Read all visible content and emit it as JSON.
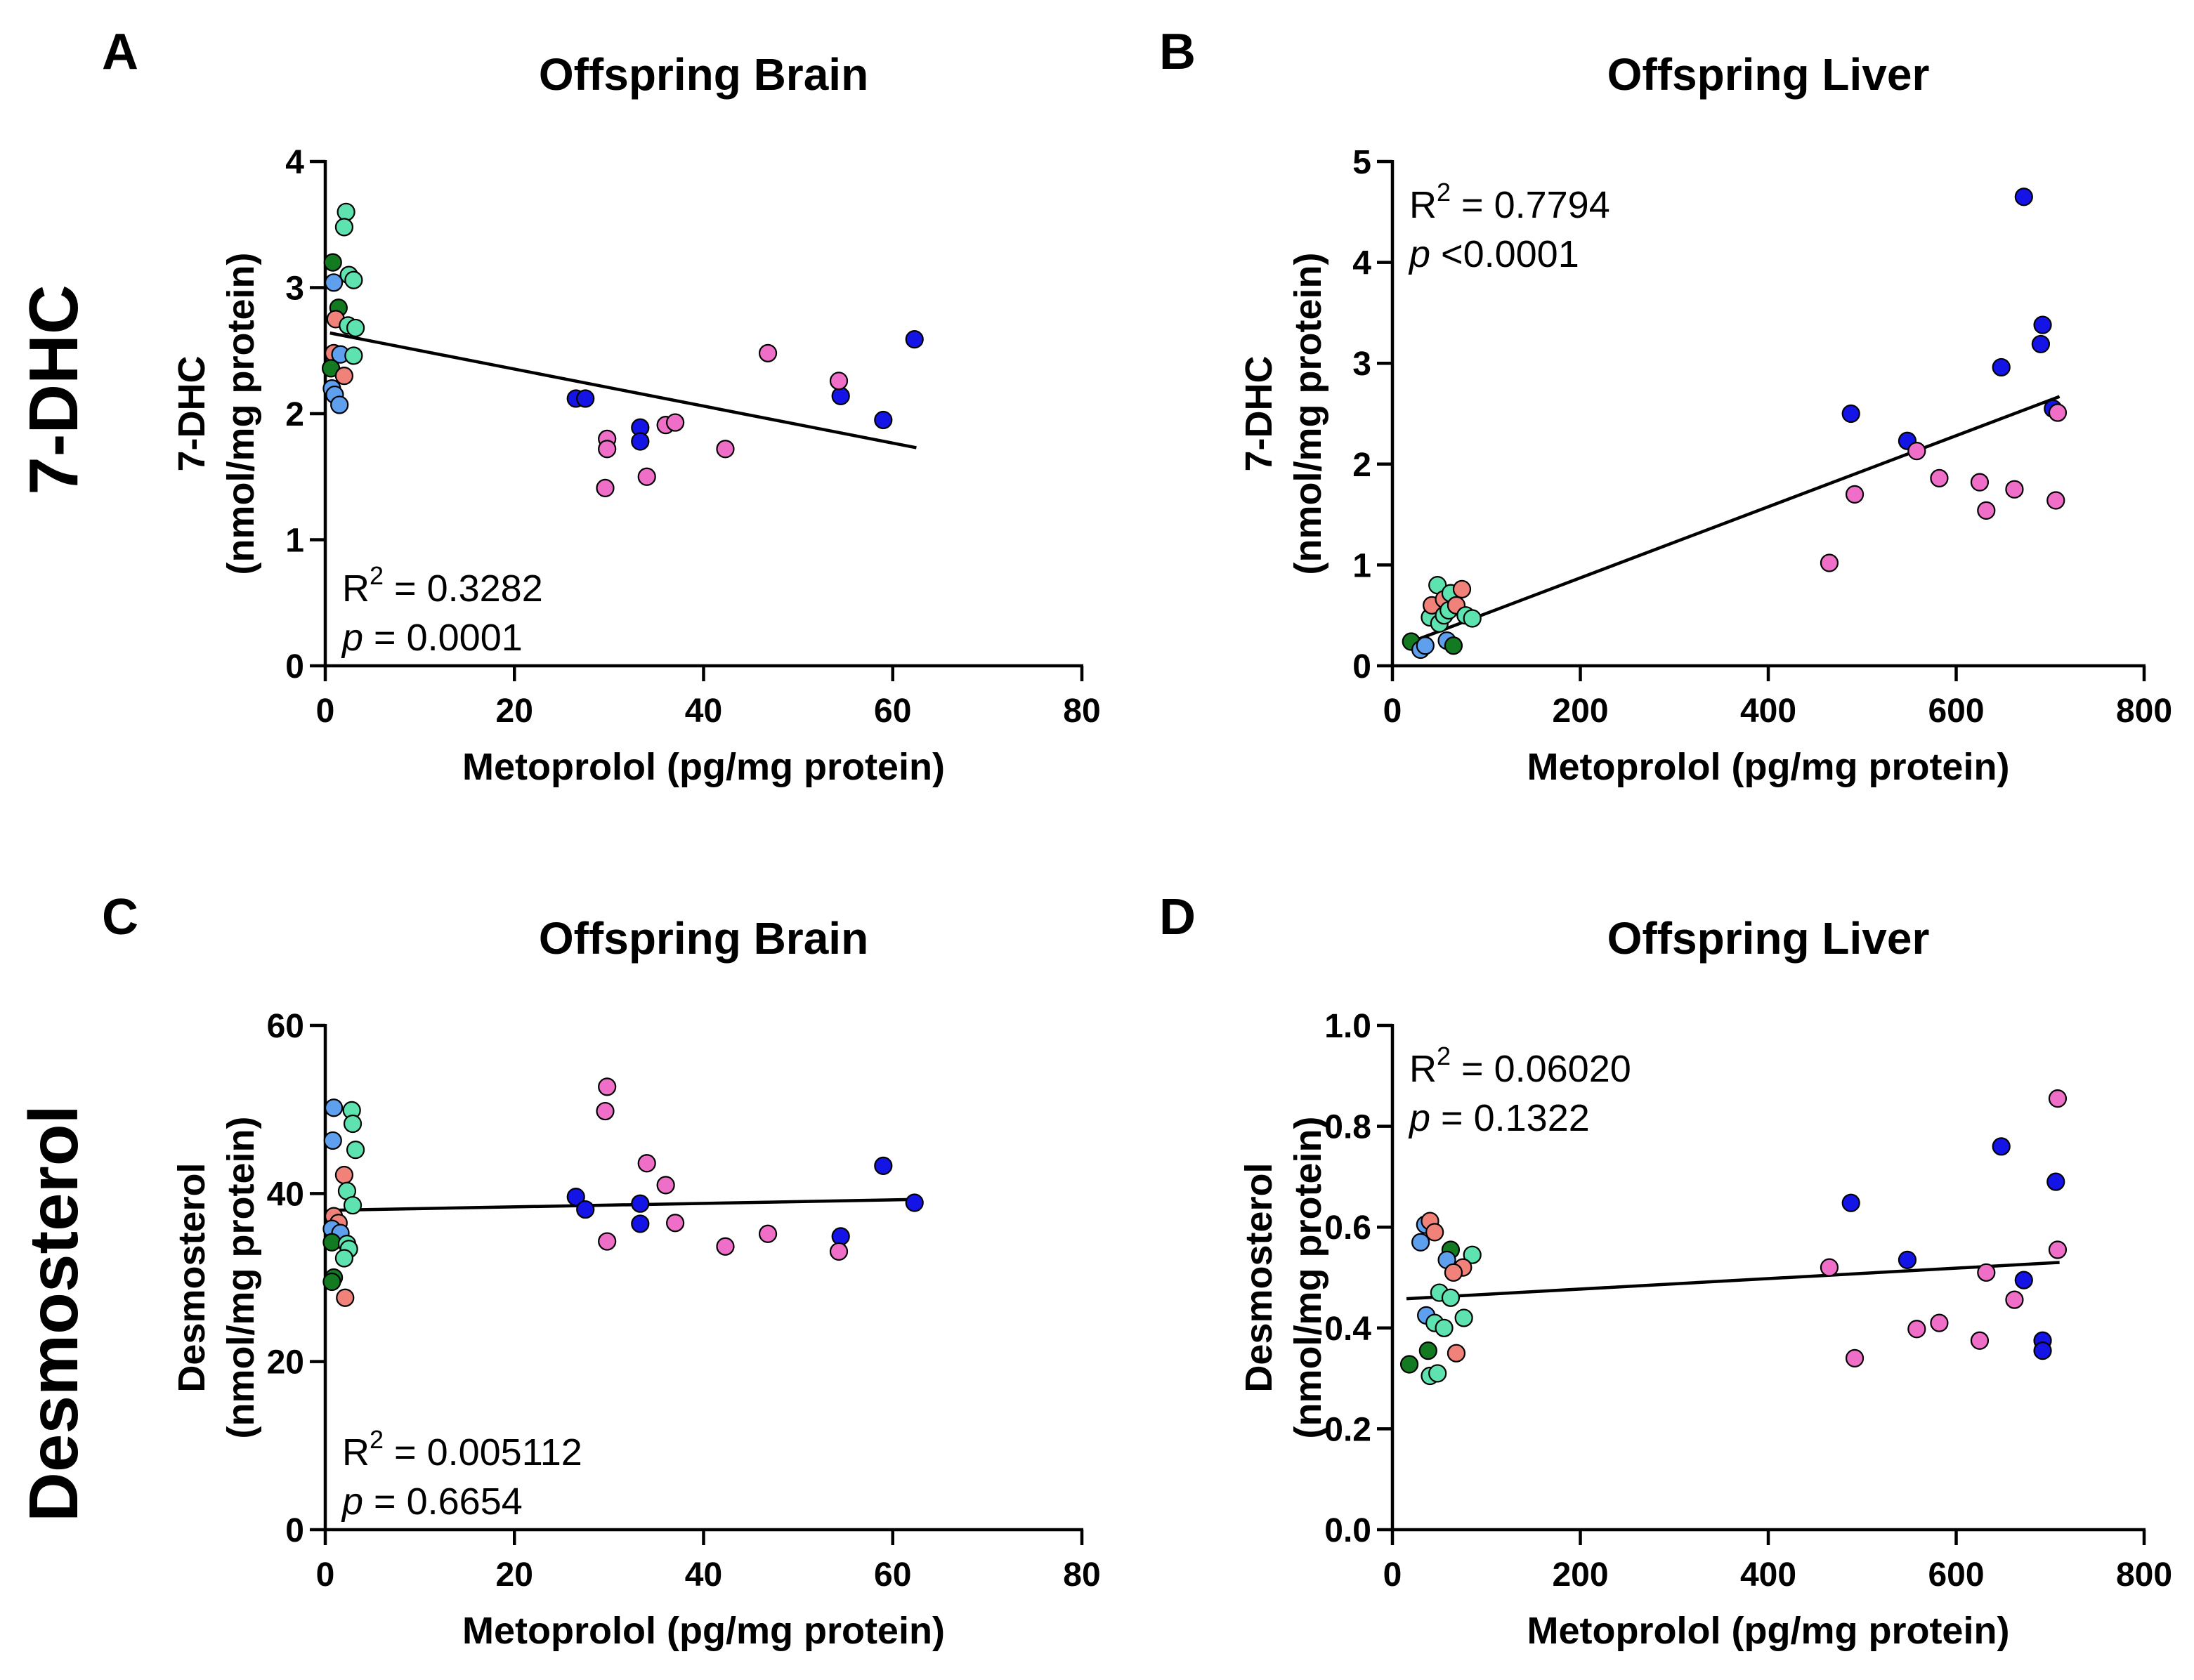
{
  "row_labels": [
    "7-DHC",
    "Desmosterol"
  ],
  "colors": {
    "blue": "#1414e6",
    "magenta": "#ee6ec8",
    "salmon": "#f0827a",
    "teal": "#5ee3b0",
    "darkgreen": "#137a22",
    "lightblue": "#5ea0ee"
  },
  "chart_data": [
    {
      "type": "scatter",
      "panel_label": "A",
      "title": "Offspring Brain",
      "xlabel": "Metoprolol (pg/mg protein)",
      "ylabel_line1": "7-DHC",
      "ylabel_line2": "(nmol/mg protein)",
      "xlim": [
        0,
        80
      ],
      "ylim": [
        0,
        4
      ],
      "xticks": [
        0,
        20,
        40,
        60,
        80
      ],
      "xtick_labels": [
        "0",
        "20",
        "40",
        "60",
        "80"
      ],
      "yticks": [
        0,
        1,
        2,
        3,
        4
      ],
      "ytick_labels": [
        "0",
        "1",
        "2",
        "3",
        "4"
      ],
      "stats_position": "bottom-left",
      "r2_value": " = 0.3282",
      "p_value": " = 0.0001",
      "fit": {
        "x1": 0.5,
        "y1": 2.64,
        "x2": 62.5,
        "y2": 1.73
      },
      "points": [
        {
          "x": 2.2,
          "y": 3.6,
          "c": "teal"
        },
        {
          "x": 2.0,
          "y": 3.48,
          "c": "teal"
        },
        {
          "x": 0.8,
          "y": 3.2,
          "c": "darkgreen"
        },
        {
          "x": 2.5,
          "y": 3.1,
          "c": "teal"
        },
        {
          "x": 3.0,
          "y": 3.06,
          "c": "teal"
        },
        {
          "x": 0.9,
          "y": 3.04,
          "c": "lightblue"
        },
        {
          "x": 1.4,
          "y": 2.84,
          "c": "darkgreen"
        },
        {
          "x": 1.1,
          "y": 2.75,
          "c": "salmon"
        },
        {
          "x": 2.4,
          "y": 2.7,
          "c": "teal"
        },
        {
          "x": 3.2,
          "y": 2.68,
          "c": "teal"
        },
        {
          "x": 0.9,
          "y": 2.48,
          "c": "salmon"
        },
        {
          "x": 1.6,
          "y": 2.47,
          "c": "lightblue"
        },
        {
          "x": 3.0,
          "y": 2.46,
          "c": "teal"
        },
        {
          "x": 0.6,
          "y": 2.36,
          "c": "darkgreen"
        },
        {
          "x": 2.0,
          "y": 2.3,
          "c": "salmon"
        },
        {
          "x": 0.7,
          "y": 2.2,
          "c": "lightblue"
        },
        {
          "x": 1.0,
          "y": 2.15,
          "c": "lightblue"
        },
        {
          "x": 1.5,
          "y": 2.07,
          "c": "lightblue"
        },
        {
          "x": 26.5,
          "y": 2.12,
          "c": "blue"
        },
        {
          "x": 27.5,
          "y": 2.12,
          "c": "blue"
        },
        {
          "x": 33.3,
          "y": 1.89,
          "c": "blue"
        },
        {
          "x": 33.3,
          "y": 1.78,
          "c": "blue"
        },
        {
          "x": 54.5,
          "y": 2.14,
          "c": "blue"
        },
        {
          "x": 59.0,
          "y": 1.95,
          "c": "blue"
        },
        {
          "x": 62.3,
          "y": 2.59,
          "c": "blue"
        },
        {
          "x": 46.8,
          "y": 2.48,
          "c": "magenta"
        },
        {
          "x": 54.3,
          "y": 2.26,
          "c": "magenta"
        },
        {
          "x": 36.0,
          "y": 1.91,
          "c": "magenta"
        },
        {
          "x": 37.0,
          "y": 1.93,
          "c": "magenta"
        },
        {
          "x": 29.8,
          "y": 1.8,
          "c": "magenta"
        },
        {
          "x": 29.8,
          "y": 1.72,
          "c": "magenta"
        },
        {
          "x": 42.3,
          "y": 1.72,
          "c": "magenta"
        },
        {
          "x": 34.0,
          "y": 1.5,
          "c": "magenta"
        },
        {
          "x": 29.6,
          "y": 1.41,
          "c": "magenta"
        }
      ]
    },
    {
      "type": "scatter",
      "panel_label": "B",
      "title": "Offspring Liver",
      "xlabel": "Metoprolol (pg/mg protein)",
      "ylabel_line1": "7-DHC",
      "ylabel_line2": "(nmol/mg protein)",
      "xlim": [
        0,
        800
      ],
      "ylim": [
        0,
        5
      ],
      "xticks": [
        0,
        200,
        400,
        600,
        800
      ],
      "xtick_labels": [
        "0",
        "200",
        "400",
        "600",
        "800"
      ],
      "yticks": [
        0,
        1,
        2,
        3,
        4,
        5
      ],
      "ytick_labels": [
        "0",
        "1",
        "2",
        "3",
        "4",
        "5"
      ],
      "stats_position": "top-left",
      "r2_value": " = 0.7794",
      "p_value": " <0.0001",
      "fit": {
        "x1": 15,
        "y1": 0.22,
        "x2": 710,
        "y2": 2.67
      },
      "points": [
        {
          "x": 20,
          "y": 0.24,
          "c": "darkgreen"
        },
        {
          "x": 30,
          "y": 0.16,
          "c": "lightblue"
        },
        {
          "x": 35,
          "y": 0.2,
          "c": "lightblue"
        },
        {
          "x": 40,
          "y": 0.48,
          "c": "teal"
        },
        {
          "x": 42,
          "y": 0.6,
          "c": "salmon"
        },
        {
          "x": 48,
          "y": 0.8,
          "c": "teal"
        },
        {
          "x": 50,
          "y": 0.42,
          "c": "teal"
        },
        {
          "x": 55,
          "y": 0.5,
          "c": "teal"
        },
        {
          "x": 55,
          "y": 0.66,
          "c": "salmon"
        },
        {
          "x": 58,
          "y": 0.25,
          "c": "lightblue"
        },
        {
          "x": 60,
          "y": 0.55,
          "c": "teal"
        },
        {
          "x": 62,
          "y": 0.72,
          "c": "teal"
        },
        {
          "x": 65,
          "y": 0.2,
          "c": "darkgreen"
        },
        {
          "x": 68,
          "y": 0.6,
          "c": "salmon"
        },
        {
          "x": 74,
          "y": 0.76,
          "c": "salmon"
        },
        {
          "x": 78,
          "y": 0.5,
          "c": "teal"
        },
        {
          "x": 85,
          "y": 0.47,
          "c": "teal"
        },
        {
          "x": 488,
          "y": 2.5,
          "c": "blue"
        },
        {
          "x": 548,
          "y": 2.23,
          "c": "blue"
        },
        {
          "x": 648,
          "y": 2.96,
          "c": "blue"
        },
        {
          "x": 672,
          "y": 4.65,
          "c": "blue"
        },
        {
          "x": 692,
          "y": 3.38,
          "c": "blue"
        },
        {
          "x": 690,
          "y": 3.19,
          "c": "blue"
        },
        {
          "x": 703,
          "y": 2.55,
          "c": "blue"
        },
        {
          "x": 465,
          "y": 1.02,
          "c": "magenta"
        },
        {
          "x": 492,
          "y": 1.7,
          "c": "magenta"
        },
        {
          "x": 558,
          "y": 2.13,
          "c": "magenta"
        },
        {
          "x": 582,
          "y": 1.86,
          "c": "magenta"
        },
        {
          "x": 625,
          "y": 1.82,
          "c": "magenta"
        },
        {
          "x": 632,
          "y": 1.54,
          "c": "magenta"
        },
        {
          "x": 662,
          "y": 1.75,
          "c": "magenta"
        },
        {
          "x": 706,
          "y": 1.64,
          "c": "magenta"
        },
        {
          "x": 708,
          "y": 2.51,
          "c": "magenta"
        }
      ]
    },
    {
      "type": "scatter",
      "panel_label": "C",
      "title": "Offspring Brain",
      "xlabel": "Metoprolol (pg/mg protein)",
      "ylabel_line1": "Desmosterol",
      "ylabel_line2": "(nmol/mg protein)",
      "xlim": [
        0,
        80
      ],
      "ylim": [
        0,
        60
      ],
      "xticks": [
        0,
        20,
        40,
        60,
        80
      ],
      "xtick_labels": [
        "0",
        "20",
        "40",
        "60",
        "80"
      ],
      "yticks": [
        0,
        20,
        40,
        60
      ],
      "ytick_labels": [
        "0",
        "20",
        "40",
        "60"
      ],
      "stats_position": "bottom-left",
      "r2_value": " = 0.005112",
      "p_value": " = 0.6654",
      "fit": {
        "x1": 0.5,
        "y1": 38.0,
        "x2": 62.5,
        "y2": 39.3
      },
      "points": [
        {
          "x": 0.9,
          "y": 50.2,
          "c": "lightblue"
        },
        {
          "x": 0.8,
          "y": 46.3,
          "c": "lightblue"
        },
        {
          "x": 2.8,
          "y": 49.9,
          "c": "teal"
        },
        {
          "x": 2.9,
          "y": 48.3,
          "c": "teal"
        },
        {
          "x": 3.2,
          "y": 45.2,
          "c": "teal"
        },
        {
          "x": 2.0,
          "y": 42.2,
          "c": "salmon"
        },
        {
          "x": 2.3,
          "y": 40.3,
          "c": "teal"
        },
        {
          "x": 2.9,
          "y": 38.6,
          "c": "teal"
        },
        {
          "x": 0.9,
          "y": 37.3,
          "c": "salmon"
        },
        {
          "x": 1.4,
          "y": 36.5,
          "c": "salmon"
        },
        {
          "x": 0.7,
          "y": 35.8,
          "c": "lightblue"
        },
        {
          "x": 1.6,
          "y": 35.3,
          "c": "lightblue"
        },
        {
          "x": 0.7,
          "y": 34.2,
          "c": "darkgreen"
        },
        {
          "x": 2.3,
          "y": 34.0,
          "c": "teal"
        },
        {
          "x": 2.5,
          "y": 33.4,
          "c": "teal"
        },
        {
          "x": 2.0,
          "y": 32.3,
          "c": "teal"
        },
        {
          "x": 0.9,
          "y": 30.0,
          "c": "darkgreen"
        },
        {
          "x": 0.7,
          "y": 29.5,
          "c": "darkgreen"
        },
        {
          "x": 2.1,
          "y": 27.6,
          "c": "salmon"
        },
        {
          "x": 26.5,
          "y": 39.6,
          "c": "blue"
        },
        {
          "x": 27.5,
          "y": 38.1,
          "c": "blue"
        },
        {
          "x": 33.3,
          "y": 38.8,
          "c": "blue"
        },
        {
          "x": 33.3,
          "y": 36.4,
          "c": "blue"
        },
        {
          "x": 54.5,
          "y": 34.9,
          "c": "blue"
        },
        {
          "x": 59.0,
          "y": 43.3,
          "c": "blue"
        },
        {
          "x": 62.3,
          "y": 38.9,
          "c": "blue"
        },
        {
          "x": 29.8,
          "y": 52.7,
          "c": "magenta"
        },
        {
          "x": 29.6,
          "y": 49.8,
          "c": "magenta"
        },
        {
          "x": 34.0,
          "y": 43.6,
          "c": "magenta"
        },
        {
          "x": 36.0,
          "y": 41.0,
          "c": "magenta"
        },
        {
          "x": 37.0,
          "y": 36.5,
          "c": "magenta"
        },
        {
          "x": 46.8,
          "y": 35.2,
          "c": "magenta"
        },
        {
          "x": 29.8,
          "y": 34.3,
          "c": "magenta"
        },
        {
          "x": 42.3,
          "y": 33.7,
          "c": "magenta"
        },
        {
          "x": 54.3,
          "y": 33.1,
          "c": "magenta"
        }
      ]
    },
    {
      "type": "scatter",
      "panel_label": "D",
      "title": "Offspring Liver",
      "xlabel": "Metoprolol (pg/mg protein)",
      "ylabel_line1": "Desmosterol",
      "ylabel_line2": "(nmol/mg protein)",
      "xlim": [
        0,
        800
      ],
      "ylim": [
        0,
        1
      ],
      "xticks": [
        0,
        200,
        400,
        600,
        800
      ],
      "xtick_labels": [
        "0",
        "200",
        "400",
        "600",
        "800"
      ],
      "yticks": [
        0,
        0.2,
        0.4,
        0.6,
        0.8,
        1.0
      ],
      "ytick_labels": [
        "0.0",
        "0.2",
        "0.4",
        "0.6",
        "0.8",
        "1.0"
      ],
      "stats_position": "top-left",
      "r2_value": " = 0.06020",
      "p_value": " = 0.1322",
      "fit": {
        "x1": 15,
        "y1": 0.458,
        "x2": 710,
        "y2": 0.53
      },
      "points": [
        {
          "x": 35,
          "y": 0.605,
          "c": "lightblue"
        },
        {
          "x": 40,
          "y": 0.612,
          "c": "salmon"
        },
        {
          "x": 30,
          "y": 0.57,
          "c": "lightblue"
        },
        {
          "x": 45,
          "y": 0.59,
          "c": "salmon"
        },
        {
          "x": 62,
          "y": 0.555,
          "c": "darkgreen"
        },
        {
          "x": 58,
          "y": 0.535,
          "c": "lightblue"
        },
        {
          "x": 85,
          "y": 0.545,
          "c": "teal"
        },
        {
          "x": 75,
          "y": 0.52,
          "c": "salmon"
        },
        {
          "x": 65,
          "y": 0.51,
          "c": "salmon"
        },
        {
          "x": 50,
          "y": 0.47,
          "c": "teal"
        },
        {
          "x": 62,
          "y": 0.46,
          "c": "teal"
        },
        {
          "x": 36,
          "y": 0.425,
          "c": "lightblue"
        },
        {
          "x": 76,
          "y": 0.42,
          "c": "teal"
        },
        {
          "x": 45,
          "y": 0.41,
          "c": "teal"
        },
        {
          "x": 55,
          "y": 0.4,
          "c": "teal"
        },
        {
          "x": 38,
          "y": 0.355,
          "c": "darkgreen"
        },
        {
          "x": 68,
          "y": 0.35,
          "c": "salmon"
        },
        {
          "x": 18,
          "y": 0.328,
          "c": "darkgreen"
        },
        {
          "x": 40,
          "y": 0.305,
          "c": "teal"
        },
        {
          "x": 48,
          "y": 0.31,
          "c": "teal"
        },
        {
          "x": 488,
          "y": 0.648,
          "c": "blue"
        },
        {
          "x": 548,
          "y": 0.535,
          "c": "blue"
        },
        {
          "x": 648,
          "y": 0.76,
          "c": "blue"
        },
        {
          "x": 672,
          "y": 0.495,
          "c": "blue"
        },
        {
          "x": 692,
          "y": 0.375,
          "c": "blue"
        },
        {
          "x": 692,
          "y": 0.355,
          "c": "blue"
        },
        {
          "x": 706,
          "y": 0.69,
          "c": "blue"
        },
        {
          "x": 465,
          "y": 0.52,
          "c": "magenta"
        },
        {
          "x": 492,
          "y": 0.34,
          "c": "magenta"
        },
        {
          "x": 558,
          "y": 0.398,
          "c": "magenta"
        },
        {
          "x": 582,
          "y": 0.41,
          "c": "magenta"
        },
        {
          "x": 625,
          "y": 0.375,
          "c": "magenta"
        },
        {
          "x": 632,
          "y": 0.51,
          "c": "magenta"
        },
        {
          "x": 662,
          "y": 0.456,
          "c": "magenta"
        },
        {
          "x": 708,
          "y": 0.855,
          "c": "magenta"
        },
        {
          "x": 708,
          "y": 0.555,
          "c": "magenta"
        }
      ]
    }
  ]
}
